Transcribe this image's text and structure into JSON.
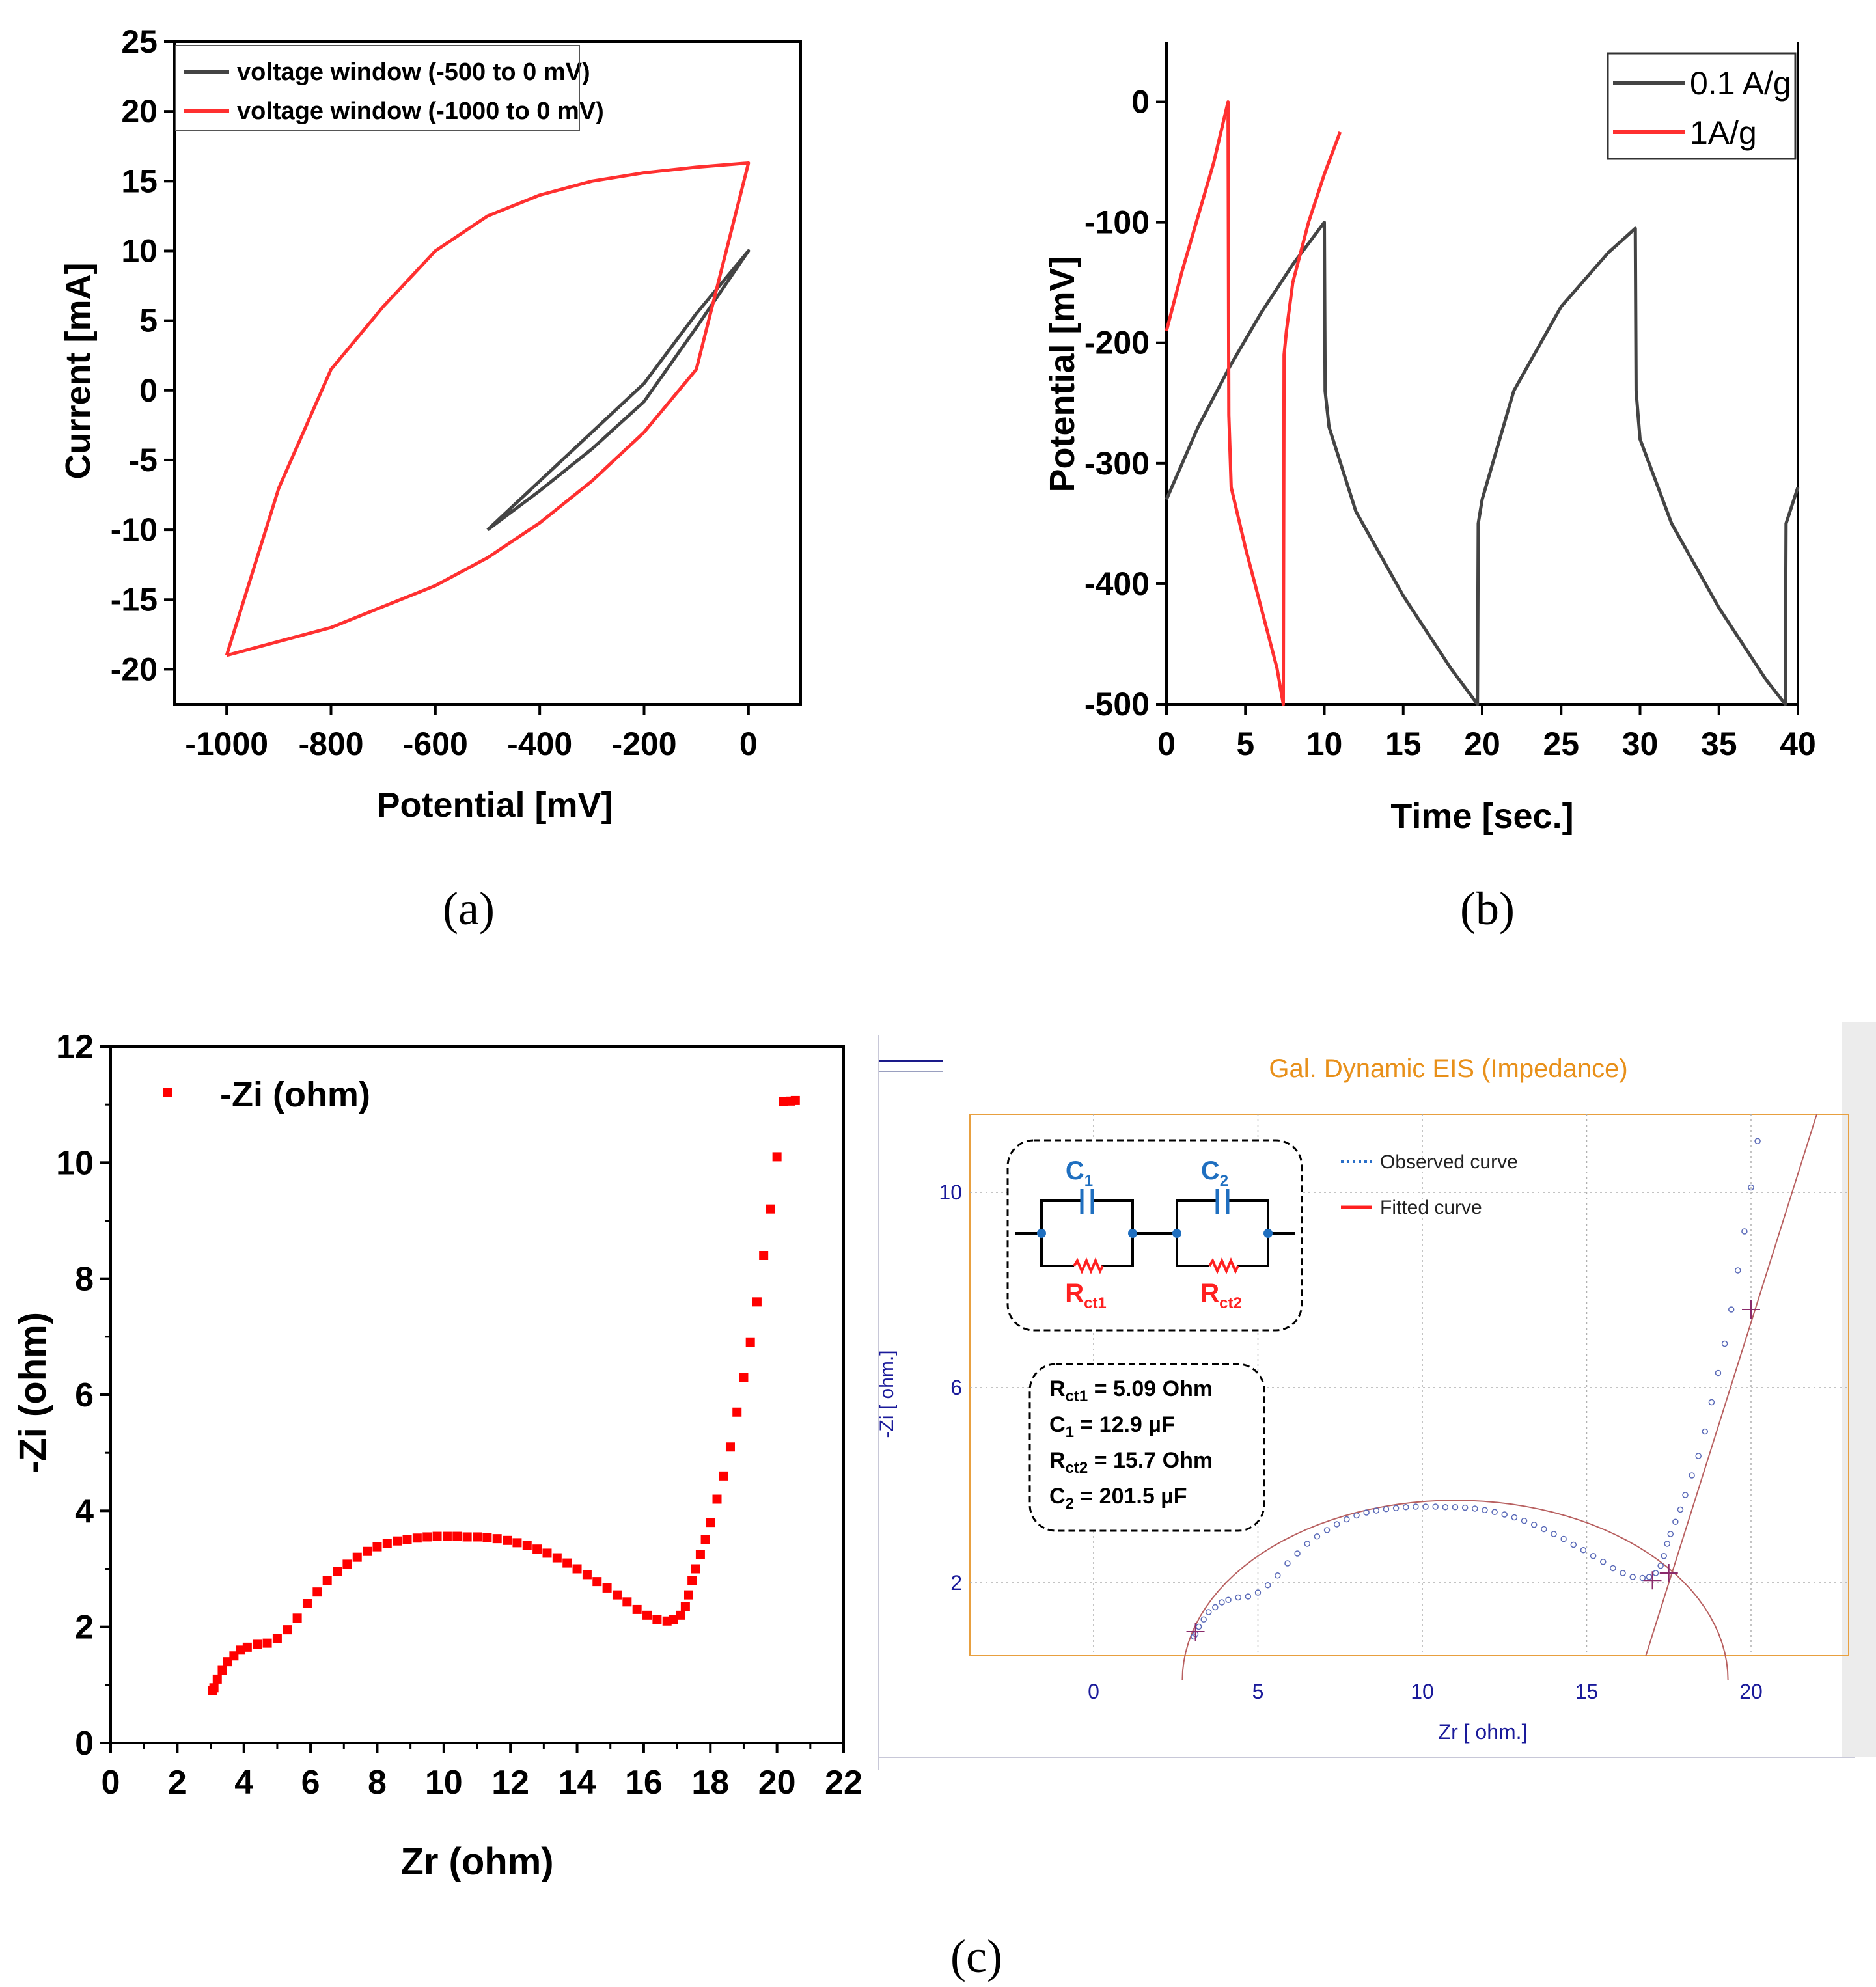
{
  "panel_labels": {
    "a": "(a)",
    "b": "(b)",
    "c": "(c)"
  },
  "chart_data": [
    {
      "id": "a",
      "type": "line",
      "xlabel": "Potential [mV]",
      "ylabel": "Current [mA]",
      "xlim": [
        -1100,
        100
      ],
      "ylim": [
        -22.5,
        25
      ],
      "xticks": [
        "-1000",
        "-800",
        "-600",
        "-400",
        "-200",
        "0"
      ],
      "yticks": [
        "-20",
        "-15",
        "-10",
        "-5",
        "0",
        "5",
        "10",
        "15",
        "20",
        "25"
      ],
      "legend": "top-left",
      "series": [
        {
          "name": "voltage window (-500 to 0 mV)",
          "color": "#444444",
          "x": [
            -500,
            -400,
            -300,
            -200,
            -100,
            0,
            -100,
            -200,
            -300,
            -400,
            -500
          ],
          "y": [
            -10,
            -6.5,
            -3,
            0.5,
            5.5,
            10,
            4.5,
            -0.8,
            -4.2,
            -7.2,
            -10
          ]
        },
        {
          "name": "voltage window (-1000 to 0 mV)",
          "color": "#ff3030",
          "x": [
            -1000,
            -900,
            -800,
            -700,
            -600,
            -500,
            -400,
            -300,
            -200,
            -100,
            0,
            -100,
            -200,
            -300,
            -400,
            -500,
            -600,
            -700,
            -800,
            -900,
            -1000
          ],
          "y": [
            -19,
            -7,
            1.5,
            6,
            10,
            12.5,
            14,
            15,
            15.6,
            16,
            16.3,
            1.5,
            -3,
            -6.5,
            -9.5,
            -12,
            -14,
            -15.5,
            -17,
            -18,
            -19
          ]
        }
      ]
    },
    {
      "id": "b",
      "type": "line",
      "xlabel": "Time [sec.]",
      "ylabel": "Potential [mV]",
      "xlim": [
        0,
        40
      ],
      "ylim": [
        -500,
        50
      ],
      "xticks": [
        "0",
        "5",
        "10",
        "15",
        "20",
        "25",
        "30",
        "35",
        "40"
      ],
      "yticks": [
        "-500",
        "-400",
        "-300",
        "-200",
        "-100",
        "0"
      ],
      "legend": "top-right",
      "series": [
        {
          "name": "0.1 A/g",
          "color": "#444444",
          "x": [
            0,
            2,
            4,
            6,
            8,
            10,
            10.05,
            10.3,
            12,
            15,
            18,
            19.7,
            19.75,
            20,
            22,
            25,
            28,
            29.7,
            29.75,
            30,
            32,
            35,
            38,
            39.2,
            39.25,
            39.5,
            40
          ],
          "y": [
            -330,
            -270,
            -220,
            -175,
            -135,
            -100,
            -240,
            -270,
            -340,
            -410,
            -470,
            -500,
            -350,
            -330,
            -240,
            -170,
            -125,
            -105,
            -240,
            -280,
            -350,
            -420,
            -480,
            -500,
            -350,
            -340,
            -320
          ]
        },
        {
          "name": "1A/g",
          "color": "#ff3030",
          "x": [
            0,
            1,
            2,
            3,
            3.9,
            3.95,
            4.1,
            5,
            6,
            7,
            7.4,
            7.45,
            7.6,
            8,
            9,
            10,
            11
          ],
          "y": [
            -190,
            -140,
            -95,
            -50,
            0,
            -260,
            -320,
            -370,
            -420,
            -470,
            -500,
            -210,
            -190,
            -150,
            -100,
            -60,
            -25
          ]
        }
      ]
    },
    {
      "id": "c-left",
      "type": "scatter",
      "xlabel": "Zr (ohm)",
      "ylabel": "-Zi (ohm)",
      "xlim": [
        0,
        22
      ],
      "ylim": [
        0,
        12
      ],
      "xticks": [
        "0",
        "2",
        "4",
        "6",
        "8",
        "10",
        "12",
        "14",
        "16",
        "18",
        "20",
        "22"
      ],
      "yticks": [
        "0",
        "2",
        "4",
        "6",
        "8",
        "10",
        "12"
      ],
      "legend": "top-left",
      "series": [
        {
          "name": "-Zi (ohm)",
          "color": "#ff0000",
          "x": [
            3.05,
            3.1,
            3.2,
            3.35,
            3.5,
            3.7,
            3.9,
            4.1,
            4.4,
            4.7,
            5.0,
            5.3,
            5.6,
            5.9,
            6.2,
            6.5,
            6.8,
            7.1,
            7.4,
            7.7,
            8.0,
            8.3,
            8.6,
            8.9,
            9.2,
            9.5,
            9.8,
            10.1,
            10.4,
            10.7,
            11.0,
            11.3,
            11.6,
            11.9,
            12.2,
            12.5,
            12.8,
            13.1,
            13.4,
            13.7,
            14.0,
            14.3,
            14.6,
            14.9,
            15.2,
            15.5,
            15.8,
            16.1,
            16.4,
            16.7,
            16.9,
            17.1,
            17.25,
            17.35,
            17.45,
            17.55,
            17.7,
            17.85,
            18.0,
            18.2,
            18.4,
            18.6,
            18.8,
            19.0,
            19.2,
            19.4,
            19.6,
            19.8,
            20.0,
            20.2,
            20.4,
            20.55
          ],
          "y": [
            0.9,
            0.95,
            1.1,
            1.25,
            1.4,
            1.5,
            1.6,
            1.65,
            1.7,
            1.72,
            1.8,
            1.95,
            2.15,
            2.4,
            2.6,
            2.8,
            2.95,
            3.08,
            3.2,
            3.3,
            3.38,
            3.44,
            3.48,
            3.51,
            3.53,
            3.55,
            3.56,
            3.56,
            3.56,
            3.55,
            3.55,
            3.54,
            3.52,
            3.49,
            3.45,
            3.4,
            3.34,
            3.27,
            3.19,
            3.1,
            3.0,
            2.9,
            2.78,
            2.67,
            2.55,
            2.43,
            2.3,
            2.2,
            2.12,
            2.1,
            2.12,
            2.2,
            2.35,
            2.55,
            2.8,
            3.0,
            3.25,
            3.5,
            3.8,
            4.2,
            4.6,
            5.1,
            5.7,
            6.3,
            6.9,
            7.6,
            8.4,
            9.2,
            10.1,
            11.05,
            11.06,
            11.07
          ]
        }
      ]
    },
    {
      "id": "c-right",
      "type": "scatter",
      "title": "Gal. Dynamic EIS (Impedance)",
      "xlabel": "Zr [ ohm.]",
      "ylabel": "-Zi [ ohm.]",
      "xticks": [
        "0",
        "5",
        "10",
        "15",
        "20"
      ],
      "yticks": [
        "2",
        "6",
        "10"
      ],
      "legend": "top-right",
      "series": [
        {
          "name": "Observed curve",
          "color": "#2a6fc8"
        },
        {
          "name": "Fitted curve",
          "color": "#ff2020"
        }
      ],
      "circuit": {
        "c1": "C",
        "c1_sub": "1",
        "c2": "C",
        "c2_sub": "2",
        "r1": "R",
        "r1_sub": "ct1",
        "r2": "R",
        "r2_sub": "ct2"
      },
      "parameters": [
        {
          "sym": "R",
          "sub": "ct1",
          "val": " = 5.09  Ohm"
        },
        {
          "sym": "C",
          "sub": "1",
          "val": " = 12.9 µF"
        },
        {
          "sym": "R",
          "sub": "ct2",
          "val": " = 15.7  Ohm"
        },
        {
          "sym": "C",
          "sub": "2",
          "val": " = 201.5 µF"
        }
      ],
      "colors": {
        "frame": "#e8a040",
        "grid": "#b0b0b0",
        "fit": "#b86060",
        "observed": "#5a6ab8"
      }
    }
  ]
}
